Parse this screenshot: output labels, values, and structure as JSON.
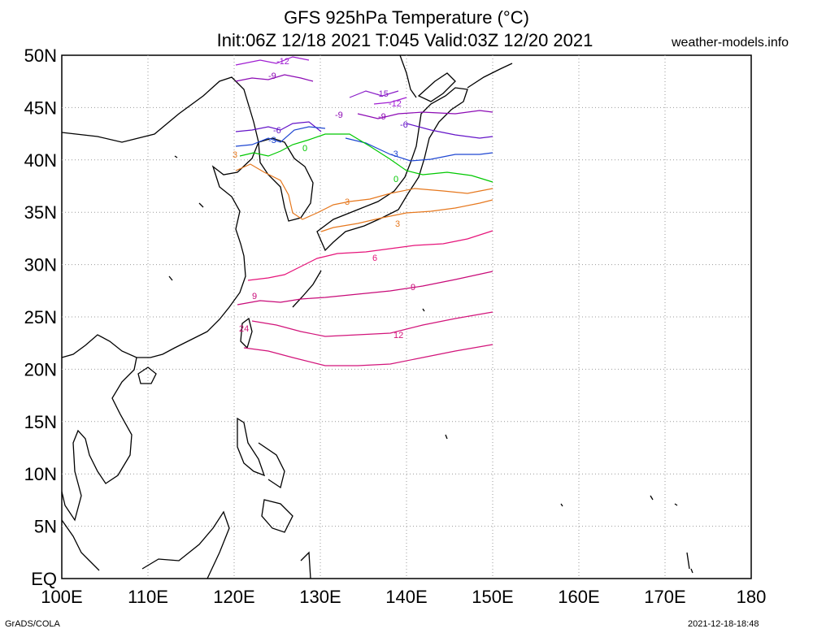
{
  "header": {
    "title_line1": "GFS 925hPa Temperature (°C)",
    "title_line2": "Init:06Z 12/18 2021 T:045 Valid:03Z 12/20 2021",
    "site": "weather-models.info"
  },
  "footer": {
    "software": "GrADS/COLA",
    "timestamp": "2021-12-18-18:48"
  },
  "map": {
    "lon_range": [
      100,
      180
    ],
    "lat_range": [
      0,
      50
    ],
    "lon_ticks": [
      "100E",
      "110E",
      "120E",
      "130E",
      "140E",
      "150E",
      "160E",
      "170E",
      "180"
    ],
    "lat_ticks": [
      "EQ",
      "5N",
      "10N",
      "15N",
      "20N",
      "25N",
      "30N",
      "35N",
      "40N",
      "45N",
      "50N"
    ],
    "grid": "dotted",
    "field_domain": {
      "lon": [
        120,
        150
      ],
      "lat": [
        20,
        50
      ]
    }
  },
  "colors": {
    "neg15": "#8a1ec8",
    "neg12": "#a01ed2",
    "neg9": "#8c0ab4",
    "neg6": "#6414c8",
    "neg3": "#1e46d2",
    "zero": "#00c800",
    "pos3": "#e6781e",
    "pos6": "#e6147a",
    "pos9": "#c80a78",
    "pos12": "#d2147a"
  },
  "contour_labels": [
    "-15",
    "-12",
    "-12",
    "-9",
    "-9",
    "-9",
    "-6",
    "-6",
    "-3",
    "-3",
    "0",
    "0",
    "3",
    "3",
    "3",
    "6",
    "9",
    "9",
    "12",
    "24"
  ]
}
